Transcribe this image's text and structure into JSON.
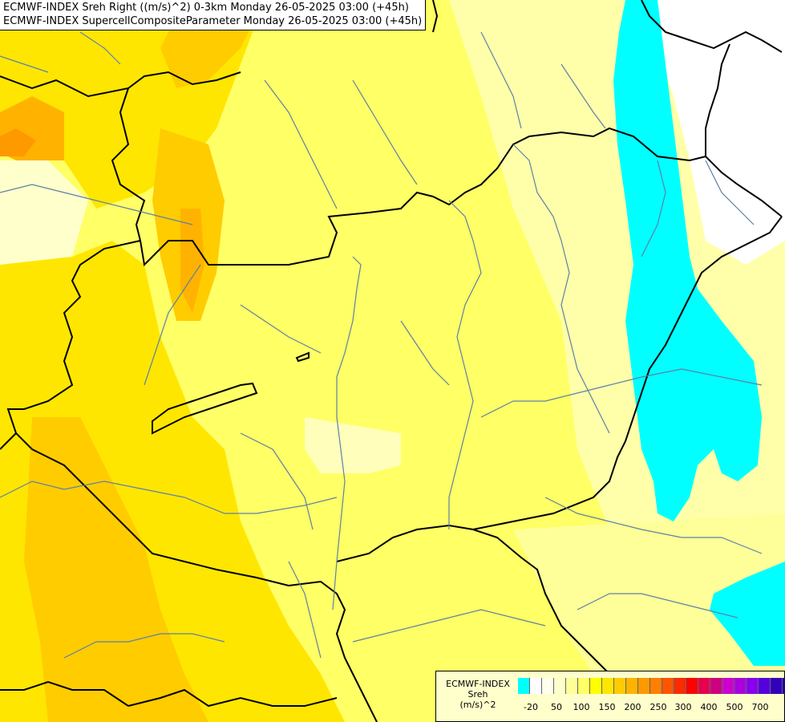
{
  "titles": {
    "line1": "ECMWF-INDEX Sreh Right ((m/s)^2) 0-3km Monday 26-05-2025 03:00 (+45h)",
    "line2": "ECMWF-INDEX SupercellCompositeParameter Monday 26-05-2025 03:00 (+45h)"
  },
  "legend": {
    "line1": "ECMWF-INDEX",
    "line2": "Sreh",
    "line3": "(m/s)^2",
    "colors": [
      "#00ffff",
      "#ffffff",
      "#ffffee",
      "#ffffcc",
      "#ffff99",
      "#ffff66",
      "#ffff00",
      "#ffe600",
      "#ffcc00",
      "#ffb300",
      "#ff9900",
      "#ff7f00",
      "#ff5500",
      "#ff2b00",
      "#ff0000",
      "#e6004d",
      "#cc0080",
      "#cc00cc",
      "#aa00dd",
      "#8800ee",
      "#5500dd",
      "#3300bb",
      "#1a0099",
      "#000080"
    ],
    "labels": [
      "-20",
      "50",
      "100",
      "150",
      "200",
      "250",
      "300",
      "400",
      "500",
      "700"
    ]
  }
}
